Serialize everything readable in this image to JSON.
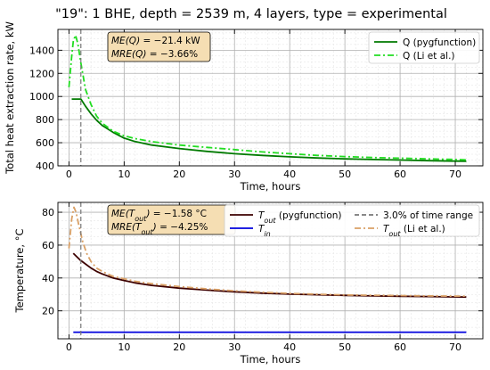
{
  "figure": {
    "title": "\"19\": 1 BHE, depth = 2539 m, 4 layers, type = experimental"
  },
  "chart_data": [
    {
      "type": "line",
      "xlabel": "Time, hours",
      "ylabel": "Total heat extraction rate, kW",
      "xlim": [
        -2,
        75
      ],
      "ylim": [
        400,
        1580
      ],
      "xticks": [
        0,
        10,
        20,
        30,
        40,
        50,
        60,
        70
      ],
      "yticks": [
        400,
        600,
        800,
        1000,
        1200,
        1400
      ],
      "grid": true,
      "legend_position": "top-right",
      "annotation": {
        "line1_sym": "ME",
        "line1_arg": "(Q)",
        "line1_val": " = −21.4 kW",
        "line2_sym": "MRE",
        "line2_arg": "(Q)",
        "line2_val": " = −3.66%"
      },
      "vline": {
        "x": 2.16
      },
      "series": [
        {
          "name": "Q (pygfunction)",
          "color": "#007a00",
          "style": "solid",
          "x": [
            0.5,
            2.16,
            3,
            4,
            5,
            6,
            8,
            10,
            12,
            15,
            20,
            25,
            30,
            35,
            40,
            45,
            50,
            55,
            60,
            65,
            70,
            72
          ],
          "y": [
            978,
            978,
            915,
            850,
            795,
            750,
            690,
            640,
            610,
            580,
            550,
            525,
            505,
            490,
            478,
            468,
            460,
            455,
            450,
            445,
            441,
            440
          ]
        },
        {
          "name": "Q (Li et al.)",
          "color": "#22dd22",
          "style": "dashdot",
          "x": [
            0,
            0.5,
            0.8,
            1.2,
            1.6,
            2.2,
            3,
            4,
            5,
            6,
            8,
            10,
            12,
            15,
            20,
            25,
            30,
            35,
            40,
            45,
            50,
            55,
            60,
            65,
            70,
            72
          ],
          "y": [
            1080,
            1350,
            1480,
            1530,
            1460,
            1280,
            1060,
            930,
            830,
            770,
            700,
            660,
            635,
            610,
            580,
            560,
            540,
            520,
            505,
            490,
            480,
            472,
            466,
            460,
            455,
            452
          ]
        }
      ]
    },
    {
      "type": "line",
      "xlabel": "Time, hours",
      "ylabel": "Temperature, °C",
      "xlim": [
        -2,
        75
      ],
      "ylim": [
        3,
        86
      ],
      "xticks": [
        0,
        10,
        20,
        30,
        40,
        50,
        60,
        70
      ],
      "yticks": [
        20,
        40,
        60,
        80
      ],
      "grid": true,
      "legend_position": "top-right",
      "annotation": {
        "line1_sym": "ME",
        "line1_arg": "(T",
        "line1_sub": "out",
        "line1_end": ")",
        "line1_val": " = −1.58 °C",
        "line2_sym": "MRE",
        "line2_arg": "(T",
        "line2_sub": "out",
        "line2_end": ")",
        "line2_val": " = −4.25%"
      },
      "vline": {
        "x": 2.16
      },
      "series": [
        {
          "name": "T",
          "sub": "out",
          "suffix": " (pygfunction)",
          "color": "#3d0000",
          "style": "solid",
          "x": [
            0.8,
            2,
            3,
            4,
            5,
            6,
            8,
            10,
            12,
            15,
            20,
            25,
            30,
            35,
            40,
            45,
            50,
            55,
            60,
            65,
            70,
            72
          ],
          "y": [
            55,
            51,
            48.5,
            46,
            44,
            42.5,
            40,
            38.5,
            37,
            35.5,
            33.8,
            32.6,
            31.6,
            30.8,
            30.2,
            29.8,
            29.4,
            29.1,
            28.9,
            28.7,
            28.5,
            28.4
          ]
        },
        {
          "name": "T",
          "sub": "in",
          "suffix": "",
          "color": "#0000dd",
          "style": "solid",
          "x": [
            0.8,
            72
          ],
          "y": [
            7,
            7
          ]
        },
        {
          "name": "3.0% of time range",
          "color": "#777777",
          "style": "dashed",
          "legend_only": true
        },
        {
          "name": "T",
          "sub": "out",
          "suffix": " (Li et al.)",
          "color": "#d9a066",
          "style": "dashdot",
          "x": [
            0,
            0.5,
            0.9,
            1.3,
            1.8,
            2.5,
            3.2,
            4,
            5,
            6,
            8,
            10,
            12,
            15,
            20,
            25,
            30,
            35,
            40,
            45,
            50,
            55,
            60,
            65,
            70,
            72
          ],
          "y": [
            58,
            76,
            83,
            80,
            72,
            62,
            55,
            50,
            46,
            44,
            41,
            39.5,
            38,
            36.5,
            34.8,
            33.3,
            32.2,
            31.3,
            30.6,
            30.1,
            29.7,
            29.5,
            29.3,
            29.1,
            29,
            29
          ]
        }
      ]
    }
  ]
}
